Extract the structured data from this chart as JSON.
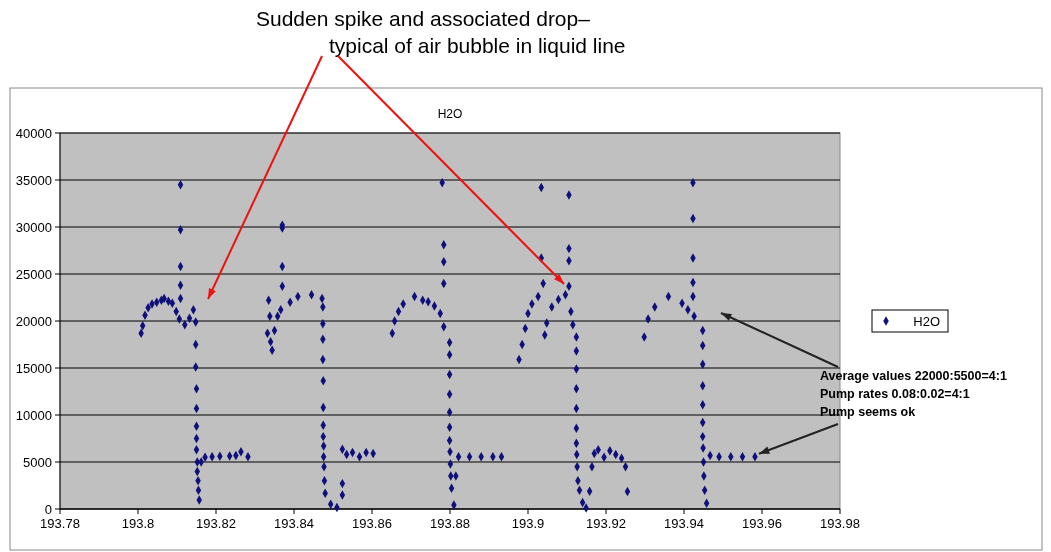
{
  "chart_data": {
    "type": "scatter",
    "title": "H2O",
    "annotations": [
      "Sudden spike and associated drop–\ntypical of air bubble in liquid line",
      {
        "text": "Average values 22000:5500=4:1\nPump rates 0.08:0.02=4:1\nPump seems ok",
        "x": 193.9582,
        "y": 5560
      }
    ],
    "xlim": [
      193.78,
      193.98
    ],
    "xticks": [
      193.78,
      193.8,
      193.82,
      193.84,
      193.86,
      193.88,
      193.9,
      193.92,
      193.94,
      193.96,
      193.98
    ],
    "ylim": [
      0,
      40000
    ],
    "yticks": [
      0,
      5000,
      10000,
      15000,
      20000,
      25000,
      30000,
      35000,
      40000
    ],
    "grid": "y",
    "legend": "right",
    "marker": "diamond",
    "series": [
      {
        "name": "H2O",
        "color": "#10107a",
        "x": [
          193.8008,
          193.8012,
          193.8018,
          193.8026,
          193.8036,
          193.8048,
          193.806,
          193.8067,
          193.8078,
          193.8088,
          193.8098,
          193.8106,
          193.812,
          193.8132,
          193.8142,
          193.8109,
          193.8109,
          193.8109,
          193.8109,
          193.8109,
          193.8148,
          193.8148,
          193.8148,
          193.815,
          193.815,
          193.815,
          193.815,
          193.815,
          193.8152,
          193.8152,
          193.8154,
          193.8155,
          193.8157,
          193.8162,
          193.8172,
          193.819,
          193.821,
          193.8235,
          193.8251,
          193.8264,
          193.8282,
          193.8335,
          193.8338,
          193.8332,
          193.834,
          193.8344,
          193.835,
          193.8358,
          193.8366,
          193.839,
          193.841,
          193.8445,
          193.8472,
          193.837,
          193.837,
          193.837,
          193.837,
          193.8474,
          193.8474,
          193.8474,
          193.8474,
          193.8475,
          193.8475,
          193.8475,
          193.8475,
          193.8476,
          193.8476,
          193.8477,
          193.8478,
          193.848,
          193.8494,
          193.851,
          193.8524,
          193.8524,
          193.8524,
          193.8535,
          193.855,
          193.8568,
          193.8585,
          193.8603,
          193.8652,
          193.8658,
          193.8668,
          193.868,
          193.8709,
          193.873,
          193.8744,
          193.876,
          193.8775,
          193.8784,
          193.878,
          193.8784,
          193.8784,
          193.8784,
          193.8799,
          193.8799,
          193.8799,
          193.8799,
          193.8799,
          193.8799,
          193.8799,
          193.88,
          193.8801,
          193.8802,
          193.8804,
          193.881,
          193.8815,
          193.8822,
          193.885,
          193.888,
          193.891,
          193.8932,
          193.8977,
          193.8985,
          193.8993,
          193.9,
          193.901,
          193.9026,
          193.9039,
          193.9043,
          193.9048,
          193.9061,
          193.9078,
          193.9096,
          193.9034,
          193.9034,
          193.9105,
          193.9105,
          193.9105,
          193.9105,
          193.911,
          193.9115,
          193.9124,
          193.9124,
          193.9124,
          193.9124,
          193.9124,
          193.9124,
          193.9124,
          193.9125,
          193.9126,
          193.9128,
          193.9132,
          193.914,
          193.9149,
          193.9158,
          193.9164,
          193.917,
          193.918,
          193.9195,
          193.921,
          193.9225,
          193.924,
          193.925,
          193.9255,
          193.9298,
          193.9308,
          193.9325,
          193.936,
          193.9395,
          193.941,
          193.9426,
          193.9448,
          193.9423,
          193.9423,
          193.9423,
          193.9423,
          193.9423,
          193.9448,
          193.9448,
          193.9448,
          193.9448,
          193.9448,
          193.9448,
          193.9449,
          193.945,
          193.9451,
          193.9453,
          193.9458,
          193.9467,
          193.949,
          193.952,
          193.955,
          193.9582
        ],
        "values": [
          18700,
          19500,
          20600,
          21400,
          21800,
          22000,
          22200,
          22400,
          22100,
          21900,
          21000,
          20200,
          19600,
          20300,
          21200,
          34500,
          29700,
          25800,
          23800,
          22400,
          19900,
          17500,
          15100,
          12800,
          10700,
          8800,
          7500,
          6300,
          5000,
          4000,
          3000,
          2000,
          950,
          5000,
          5500,
          5560,
          5600,
          5650,
          5700,
          6100,
          5560,
          22200,
          20500,
          18700,
          17800,
          16900,
          19000,
          20500,
          21200,
          22000,
          22600,
          22800,
          22400,
          30200,
          29900,
          25800,
          23700,
          21500,
          19700,
          18050,
          15900,
          13650,
          10800,
          8900,
          7700,
          6700,
          5560,
          4500,
          3000,
          1670,
          500,
          150,
          1500,
          2700,
          6350,
          5800,
          6000,
          5560,
          6000,
          5900,
          18700,
          20000,
          21000,
          21800,
          22600,
          22200,
          22060,
          21600,
          20800,
          19400,
          34700,
          28100,
          26300,
          24000,
          17700,
          16400,
          14300,
          12200,
          10300,
          8700,
          7300,
          6100,
          4800,
          3500,
          2200,
          430,
          3500,
          5560,
          5560,
          5560,
          5560,
          5560,
          15900,
          17500,
          19200,
          20800,
          21800,
          22600,
          24000,
          18500,
          19800,
          21500,
          22300,
          22800,
          34200,
          26700,
          33400,
          27700,
          26400,
          23700,
          21000,
          19600,
          18300,
          16800,
          14900,
          12800,
          10700,
          8600,
          7000,
          5800,
          4500,
          3000,
          2000,
          700,
          100,
          1900,
          4500,
          5900,
          6300,
          5500,
          6200,
          5800,
          5400,
          4500,
          1850,
          18300,
          20200,
          21500,
          22600,
          21900,
          21200,
          20500,
          19000,
          34700,
          30900,
          26700,
          24100,
          22600,
          17400,
          15400,
          13100,
          11100,
          9200,
          7700,
          6500,
          5000,
          3500,
          2000,
          600,
          5700,
          5560,
          5560,
          5560,
          5560
        ]
      }
    ]
  }
}
